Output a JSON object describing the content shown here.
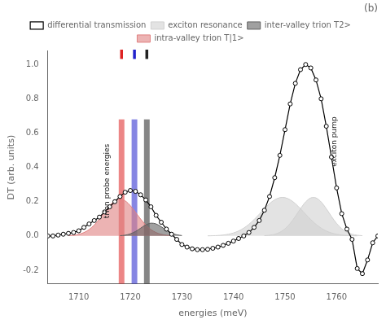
{
  "chart_data": {
    "type": "line",
    "title": "(b)",
    "xlabel": "energies (meV)",
    "ylabel": "DT (arb. units)",
    "xlim": [
      1704,
      1768
    ],
    "ylim": [
      -0.28,
      1.08
    ],
    "xticks": [
      1710,
      1720,
      1730,
      1740,
      1750,
      1760
    ],
    "yticks": [
      -0.2,
      {
        "value": 0,
        "label": "0.0"
      },
      0.2,
      0.4,
      0.6,
      0.8,
      {
        "value": 1,
        "label": "1.0"
      }
    ],
    "grid": false,
    "legend": "top",
    "series": [
      {
        "name": "differential transmission",
        "type": "line",
        "color": "black",
        "marker": "o",
        "x": [
          1704,
          1705,
          1706,
          1707,
          1708,
          1709,
          1710,
          1711,
          1712,
          1713,
          1714,
          1715,
          1716,
          1717,
          1718,
          1719,
          1720,
          1721,
          1722,
          1723,
          1724,
          1725,
          1726,
          1727,
          1728,
          1729,
          1730,
          1731,
          1732,
          1733,
          1734,
          1735,
          1736,
          1737,
          1738,
          1739,
          1740,
          1741,
          1742,
          1743,
          1744,
          1745,
          1746,
          1747,
          1748,
          1749,
          1750,
          1751,
          1752,
          1753,
          1754,
          1755,
          1756,
          1757,
          1758,
          1759,
          1760,
          1761,
          1762,
          1763,
          1764,
          1765,
          1766,
          1767,
          1768
        ],
        "values": [
          0.0,
          0.0,
          0.005,
          0.01,
          0.015,
          0.02,
          0.03,
          0.05,
          0.07,
          0.09,
          0.11,
          0.14,
          0.17,
          0.2,
          0.23,
          0.255,
          0.265,
          0.26,
          0.24,
          0.21,
          0.17,
          0.12,
          0.08,
          0.04,
          0.01,
          -0.02,
          -0.05,
          -0.065,
          -0.075,
          -0.08,
          -0.08,
          -0.078,
          -0.072,
          -0.065,
          -0.055,
          -0.043,
          -0.03,
          -0.015,
          0.0,
          0.02,
          0.05,
          0.09,
          0.15,
          0.23,
          0.34,
          0.47,
          0.62,
          0.77,
          0.89,
          0.97,
          1.0,
          0.98,
          0.91,
          0.8,
          0.64,
          0.46,
          0.28,
          0.13,
          0.04,
          -0.02,
          -0.19,
          -0.22,
          -0.14,
          -0.04,
          0.0
        ]
      },
      {
        "name": "exciton resonance",
        "type": "area",
        "color": "#d0d0d0",
        "x": [
          1735,
          1736,
          1737,
          1738,
          1739,
          1740,
          1741,
          1742,
          1743,
          1744,
          1745,
          1746,
          1747,
          1748,
          1749,
          1750,
          1751,
          1752,
          1753,
          1754,
          1755,
          1756,
          1757,
          1758,
          1759,
          1760,
          1761,
          1762,
          1763,
          1764
        ],
        "values": [
          0.0006,
          0.0013,
          0.0027,
          0.0053,
          0.0099,
          0.0174,
          0.029,
          0.0457,
          0.0679,
          0.0955,
          0.1267,
          0.159,
          0.1885,
          0.2111,
          0.2234,
          0.2234,
          0.2111,
          0.1885,
          0.159,
          0.1267,
          0.0955,
          0.0679,
          0.0457,
          0.029,
          0.0174,
          0.0099,
          0.0053,
          0.0027,
          0.0013,
          0.0006
        ]
      },
      {
        "name": "inter-valley trion T2>",
        "type": "area",
        "color": "#606060",
        "x": [
          1718,
          1719,
          1720,
          1721,
          1722,
          1723,
          1724,
          1725,
          1726,
          1727,
          1728,
          1729,
          1730
        ],
        "values": [
          0.0014,
          0.0046,
          0.0121,
          0.026,
          0.0455,
          0.0646,
          0.0747,
          0.0702,
          0.0537,
          0.0334,
          0.0169,
          0.0069,
          0.0023
        ]
      },
      {
        "name": "intra-valley trion T|1>",
        "type": "area",
        "color": "#e08080",
        "x": [
          1708,
          1709,
          1710,
          1711,
          1712,
          1713,
          1714,
          1715,
          1716,
          1717,
          1718,
          1719,
          1720,
          1721,
          1722,
          1723,
          1724,
          1725,
          1726,
          1727,
          1728
        ],
        "values": [
          0.0016,
          0.0041,
          0.0094,
          0.0196,
          0.0371,
          0.0634,
          0.0984,
          0.1385,
          0.1769,
          0.2048,
          0.215,
          0.2048,
          0.1769,
          0.1385,
          0.0984,
          0.0634,
          0.0371,
          0.0196,
          0.0094,
          0.0041,
          0.0016
        ]
      },
      {
        "type": "area",
        "color": "#d0d0d0",
        "x": [
          1746,
          1747,
          1748,
          1749,
          1750,
          1751,
          1752,
          1753,
          1754,
          1755,
          1756,
          1757,
          1758,
          1759,
          1760,
          1761,
          1762,
          1763,
          1764,
          1765
        ],
        "values": [
          0.0015,
          0.0041,
          0.0099,
          0.0215,
          0.0419,
          0.073,
          0.1139,
          0.159,
          0.1986,
          0.2219,
          0.2219,
          0.1986,
          0.159,
          0.1139,
          0.073,
          0.0419,
          0.0215,
          0.0099,
          0.0041,
          0.0015
        ]
      },
      {
        "type": "band",
        "color": "#dd2222",
        "x": [
          1717.75,
          1718.85
        ],
        "values": [
          -0.28,
          0.68
        ]
      },
      {
        "type": "band",
        "color": "#2222cc",
        "x": [
          1720.25,
          1721.35
        ],
        "values": [
          -0.28,
          0.68
        ]
      },
      {
        "type": "band",
        "color": "#222222",
        "x": [
          1722.65,
          1723.75
        ],
        "values": [
          -0.28,
          0.68
        ]
      }
    ],
    "annotations": [
      {
        "text": "trion probe energies",
        "x": 1715.5,
        "y": 0.32
      },
      {
        "text": "exciton pump",
        "x": 1759.5,
        "y": 0.55
      }
    ]
  }
}
